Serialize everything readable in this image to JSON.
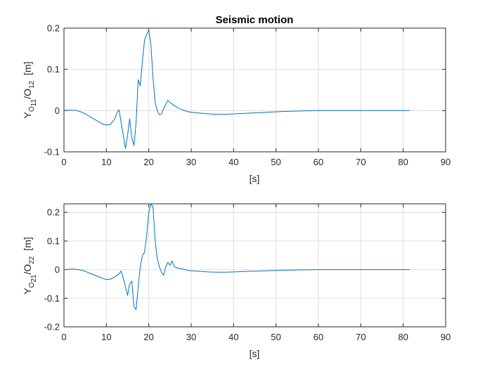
{
  "chart_data": [
    {
      "type": "line",
      "title": "Seismic motion",
      "xlabel": "[s]",
      "ylabel": {
        "main": "Y",
        "sub1": "O",
        "sub1b": "11",
        "sep": "/O",
        "sub2": "12",
        "unit": "[m]"
      },
      "xlim": [
        0,
        90
      ],
      "ylim": [
        -0.1,
        0.2
      ],
      "xticks": [
        "0",
        "10",
        "20",
        "30",
        "40",
        "50",
        "60",
        "70",
        "80",
        "90"
      ],
      "yticks": [
        "-0.1",
        "0",
        "0.1",
        "0.2"
      ],
      "grid": true,
      "color": "#0072BD",
      "series": [
        {
          "x": [
            0,
            1,
            2,
            3,
            4,
            5,
            6,
            7,
            8,
            9,
            10,
            11,
            12,
            12.5,
            13,
            13.5,
            14,
            14.5,
            15,
            15.5,
            16,
            16.5,
            17,
            17.5,
            18,
            18.5,
            19,
            19.5,
            20,
            20.5,
            21,
            21.5,
            22,
            22.5,
            23,
            23.5,
            24,
            24.5,
            25,
            26,
            27,
            28,
            29,
            30,
            32,
            34,
            36,
            38,
            40,
            44,
            48,
            52,
            56,
            60,
            65,
            70,
            75,
            80,
            81.5
          ],
          "y": [
            0,
            0.001,
            0.001,
            0,
            -0.003,
            -0.008,
            -0.014,
            -0.02,
            -0.026,
            -0.032,
            -0.035,
            -0.033,
            -0.02,
            -0.005,
            0.002,
            -0.03,
            -0.06,
            -0.092,
            -0.06,
            -0.02,
            -0.065,
            -0.085,
            -0.03,
            0.075,
            0.06,
            0.12,
            0.17,
            0.185,
            0.195,
            0.16,
            0.08,
            0.02,
            0,
            -0.01,
            -0.008,
            0.005,
            0.015,
            0.025,
            0.02,
            0.012,
            0.006,
            0.002,
            -0.002,
            -0.004,
            -0.006,
            -0.008,
            -0.009,
            -0.009,
            -0.008,
            -0.006,
            -0.004,
            -0.002,
            -0.001,
            0,
            0,
            0,
            0,
            0,
            0
          ]
        }
      ]
    },
    {
      "type": "line",
      "title": "",
      "xlabel": "[s]",
      "ylabel": {
        "main": "Y",
        "sub1": "O",
        "sub1b": "21",
        "sep": "/O",
        "sub2": "22",
        "unit": "[m]"
      },
      "xlim": [
        0,
        90
      ],
      "ylim": [
        -0.2,
        0.23
      ],
      "xticks": [
        "0",
        "10",
        "20",
        "30",
        "40",
        "50",
        "60",
        "70",
        "80",
        "90"
      ],
      "yticks": [
        "-0.2",
        "-0.1",
        "0",
        "0.1",
        "0.2"
      ],
      "grid": true,
      "color": "#0072BD",
      "series": [
        {
          "x": [
            0,
            1,
            2,
            3,
            4,
            5,
            6,
            7,
            8,
            9,
            10,
            11,
            12,
            13,
            13.5,
            14,
            14.5,
            15,
            15.5,
            16,
            16.5,
            17,
            17.5,
            18,
            18.5,
            19,
            19.5,
            20,
            20.5,
            21,
            21.5,
            22,
            22.5,
            23,
            23.5,
            24,
            24.5,
            25,
            25.5,
            26,
            27,
            28,
            29,
            30,
            32,
            34,
            36,
            38,
            40,
            44,
            48,
            52,
            56,
            60,
            65,
            70,
            75,
            80,
            81.5
          ],
          "y": [
            0,
            0.001,
            0.002,
            0.001,
            -0.002,
            -0.006,
            -0.012,
            -0.018,
            -0.024,
            -0.03,
            -0.035,
            -0.033,
            -0.025,
            -0.015,
            -0.005,
            -0.03,
            -0.06,
            -0.09,
            -0.05,
            -0.04,
            -0.13,
            -0.14,
            -0.06,
            0.01,
            0.05,
            0.06,
            0.12,
            0.2,
            0.23,
            0.22,
            0.1,
            0.04,
            0.01,
            -0.01,
            -0.02,
            0.01,
            0.025,
            0.015,
            0.03,
            0.01,
            0.005,
            0.002,
            -0.002,
            -0.004,
            -0.006,
            -0.008,
            -0.009,
            -0.009,
            -0.008,
            -0.006,
            -0.004,
            -0.002,
            -0.001,
            0,
            0,
            0,
            0,
            0,
            0
          ]
        }
      ]
    }
  ]
}
